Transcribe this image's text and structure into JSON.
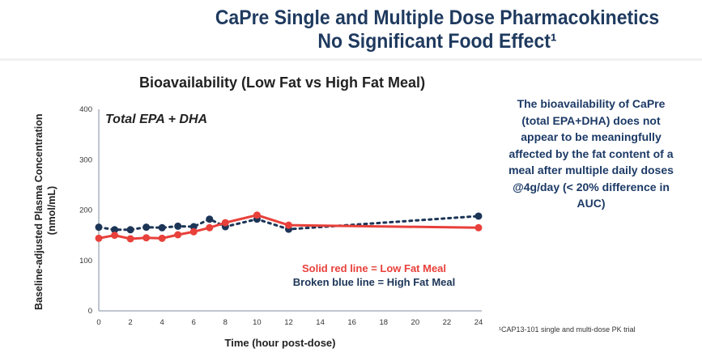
{
  "header": {
    "title_line1": "CaPre Single and Multiple Dose Pharmacokinetics",
    "title_line2": "No Significant Food Effect¹"
  },
  "side_note": "The bioavailability of CaPre (total EPA+DHA) does not appear to be meaningfully affected by the fat content of a meal after multiple daily doses @4g/day (< 20% difference in AUC)",
  "footnote": "¹CAP13-101 single and multi-dose PK trial",
  "colors": {
    "low_fat": "#e8403a",
    "high_fat": "#1c3557"
  },
  "chart_data": {
    "type": "line",
    "title": "Bioavailability (Low Fat vs High Fat Meal)",
    "annotation": "Total EPA + DHA",
    "xlabel": "Time (hour post-dose)",
    "ylabel": "Baseline-adjusted Plasma Concentration (nmol/mL)",
    "xlim": [
      0,
      24
    ],
    "ylim": [
      0,
      400
    ],
    "xticks": [
      0,
      2,
      4,
      6,
      8,
      10,
      12,
      14,
      16,
      18,
      20,
      22,
      24
    ],
    "yticks": [
      0,
      100,
      200,
      300,
      400
    ],
    "grid": false,
    "legend_lines": [
      "Solid red line = Low Fat Meal",
      "Broken blue line = High Fat Meal"
    ],
    "x": [
      0,
      1,
      2,
      3,
      4,
      5,
      6,
      7,
      8,
      10,
      12,
      24
    ],
    "series": [
      {
        "name": "Low Fat Meal",
        "style": "solid",
        "values": [
          144,
          150,
          143,
          145,
          144,
          151,
          157,
          165,
          175,
          190,
          170,
          165
        ]
      },
      {
        "name": "High Fat Meal",
        "style": "dotted",
        "values": [
          166,
          161,
          161,
          166,
          165,
          168,
          167,
          182,
          167,
          182,
          162,
          188
        ]
      }
    ]
  }
}
